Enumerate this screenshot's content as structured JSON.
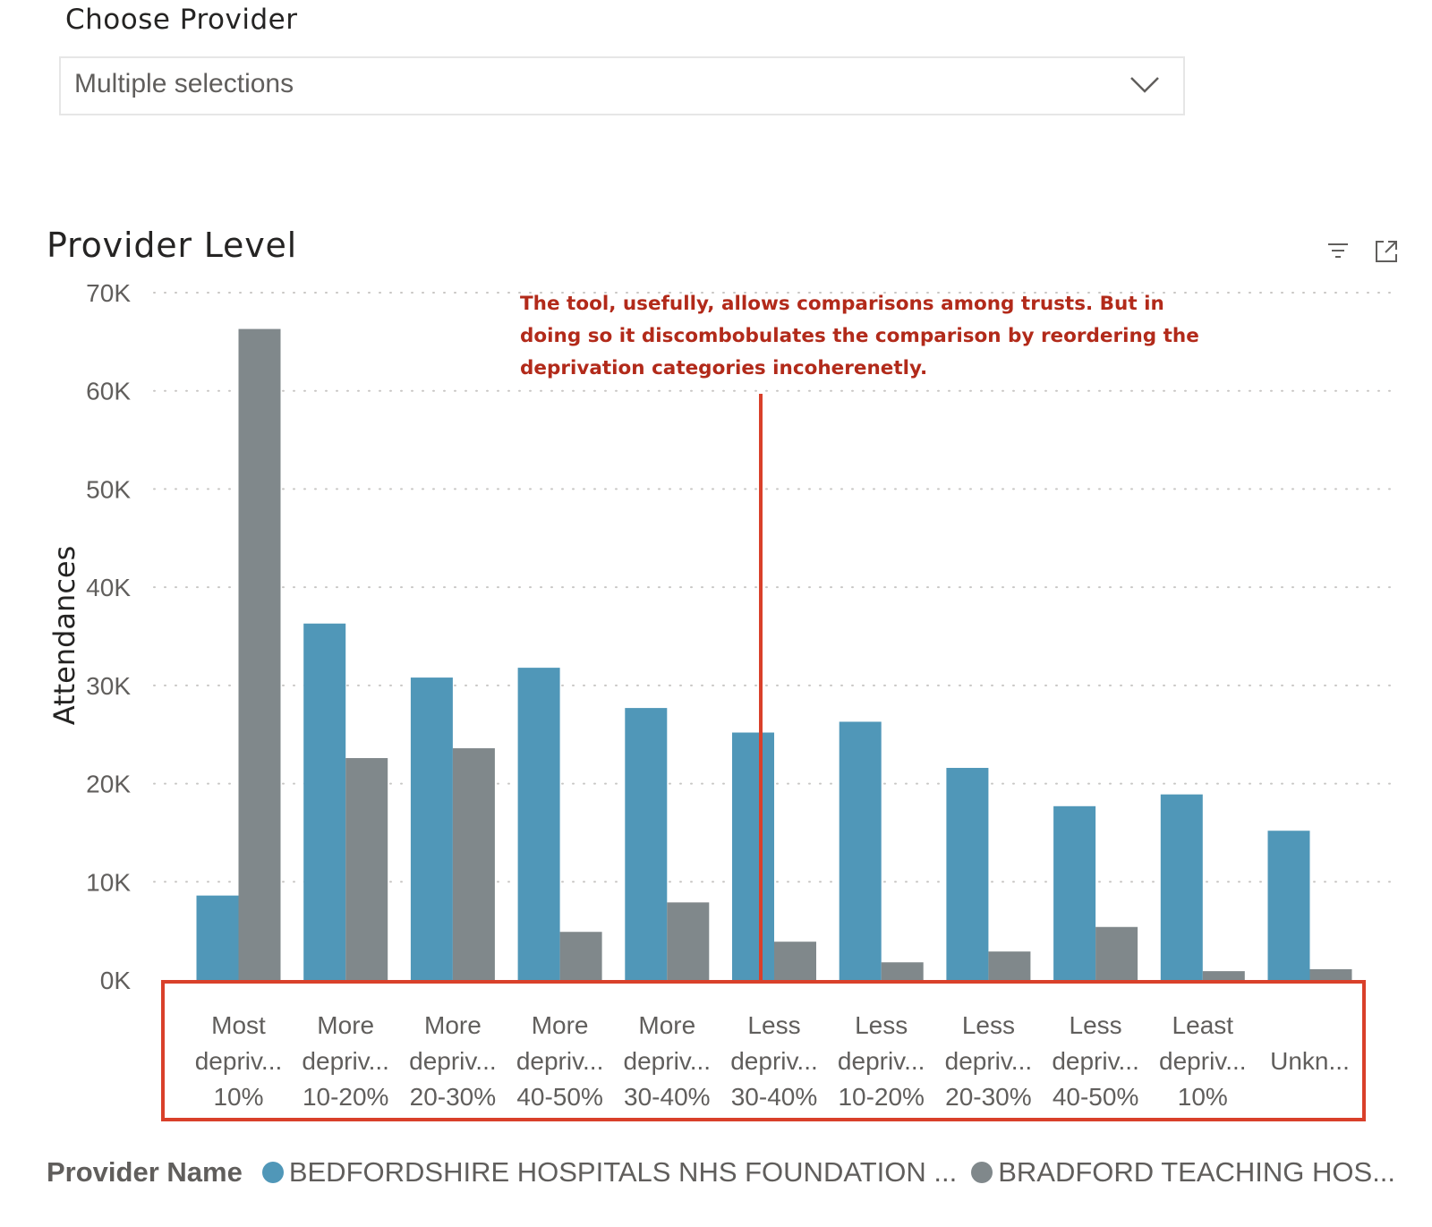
{
  "slicer": {
    "label": "Choose Provider",
    "value": "Multiple selections",
    "icon": "chevron-down-icon"
  },
  "visual": {
    "title": "Provider Level",
    "icons": [
      "filter-icon",
      "focus-mode-icon"
    ]
  },
  "annotation": {
    "lines": [
      "The tool, usefully, allows comparisons among trusts. But in",
      "doing so it discombobulates the comparison by reordering the",
      "deprivation categories incoherenetly."
    ],
    "color": "#b22a1a"
  },
  "colors": {
    "series1": "#5097b8",
    "series2": "#80888b",
    "highlight": "#d9402a",
    "axis_text": "#605e5c"
  },
  "chart_data": {
    "type": "bar",
    "title": "Provider Level",
    "ylabel": "Attendances",
    "xlabel": "",
    "ylim": [
      0,
      70000
    ],
    "yticks": [
      "0K",
      "10K",
      "20K",
      "30K",
      "40K",
      "50K",
      "60K",
      "70K"
    ],
    "grid": true,
    "categories": [
      [
        "Most",
        "depriv...",
        "10%"
      ],
      [
        "More",
        "depriv...",
        "10-20%"
      ],
      [
        "More",
        "depriv...",
        "20-30%"
      ],
      [
        "More",
        "depriv...",
        "40-50%"
      ],
      [
        "More",
        "depriv...",
        "30-40%"
      ],
      [
        "Less",
        "depriv...",
        "30-40%"
      ],
      [
        "Less",
        "depriv...",
        "10-20%"
      ],
      [
        "Less",
        "depriv...",
        "20-30%"
      ],
      [
        "Less",
        "depriv...",
        "40-50%"
      ],
      [
        "Least",
        "depriv...",
        "10%"
      ],
      [
        "Unkn...",
        "",
        ""
      ]
    ],
    "series": [
      {
        "name": "BEDFORDSHIRE HOSPITALS NHS FOUNDATION ...",
        "values": [
          8600,
          36300,
          30800,
          31800,
          27700,
          25200,
          26300,
          21600,
          17700,
          18900,
          15200
        ]
      },
      {
        "name": "BRADFORD TEACHING HOS...",
        "values": [
          66300,
          22600,
          23600,
          4900,
          7900,
          3900,
          1800,
          2900,
          5400,
          900,
          1100
        ]
      }
    ],
    "legend": {
      "title": "Provider Name",
      "position": "bottom"
    }
  }
}
